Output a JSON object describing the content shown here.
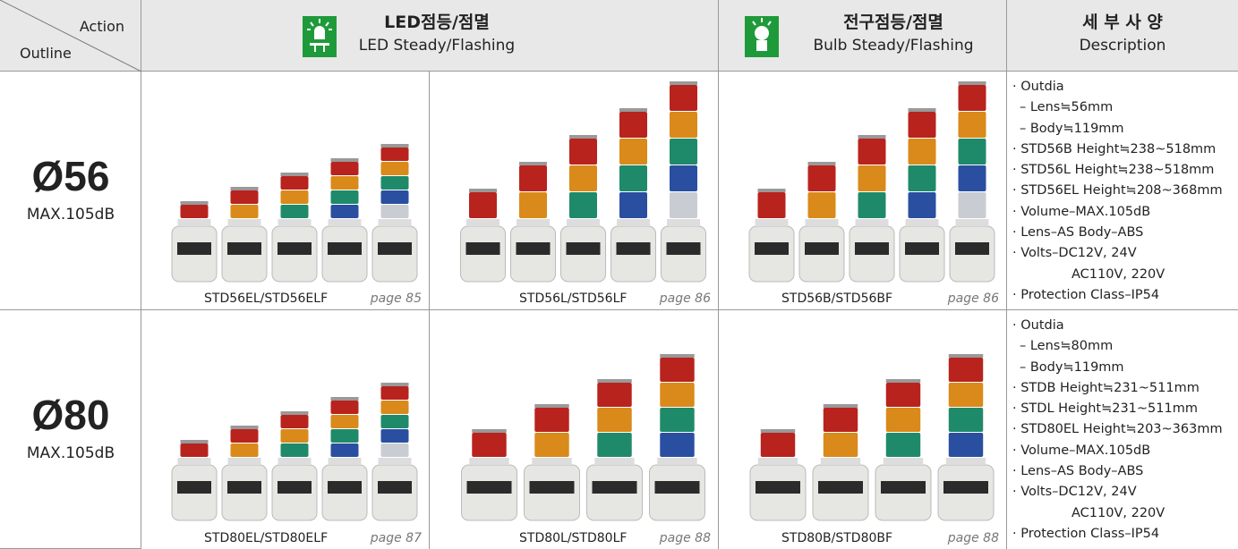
{
  "header": {
    "action": "Action",
    "outline": "Outline",
    "led": {
      "title": "LED점등/점멸",
      "subtitle": "LED Steady/Flashing"
    },
    "bulb": {
      "title": "전구점등/점멸",
      "subtitle": "Bulb Steady/Flashing"
    },
    "description": {
      "title": "세 부 사 양",
      "subtitle": "Description"
    }
  },
  "rows": [
    {
      "size": "Ø56",
      "spec": "MAX.105dB",
      "products": [
        {
          "model": "STD56EL/STD56ELF",
          "page": "page 85"
        },
        {
          "model": "STD56L/STD56LF",
          "page": "page 86"
        },
        {
          "model": "STD56B/STD56BF",
          "page": "page 86"
        }
      ],
      "description": [
        "· Outdia",
        "– Lens≒56mm",
        "– Body≒119mm",
        "· STD56B Height≒238~518mm",
        "· STD56L Height≒238~518mm",
        "· STD56EL Height≒208~368mm",
        "· Volume–MAX.105dB",
        "· Lens–AS Body–ABS",
        "· Volts–DC12V, 24V",
        "AC110V, 220V",
        "· Protection Class–IP54"
      ]
    },
    {
      "size": "Ø80",
      "spec": "MAX.105dB",
      "products": [
        {
          "model": "STD80EL/STD80ELF",
          "page": "page 87"
        },
        {
          "model": "STD80L/STD80LF",
          "page": "page 88"
        },
        {
          "model": "STD80B/STD80BF",
          "page": "page 88"
        }
      ],
      "description": [
        "· Outdia",
        "– Lens≒80mm",
        "– Body≒119mm",
        "· STDB Height≒231~511mm",
        "· STDL Height≒231~511mm",
        "· STD80EL Height≒203~363mm",
        "· Volume–MAX.105dB",
        "· Lens–AS Body–ABS",
        "· Volts–DC12V, 24V",
        "AC110V, 220V",
        "· Protection Class–IP54"
      ]
    }
  ]
}
